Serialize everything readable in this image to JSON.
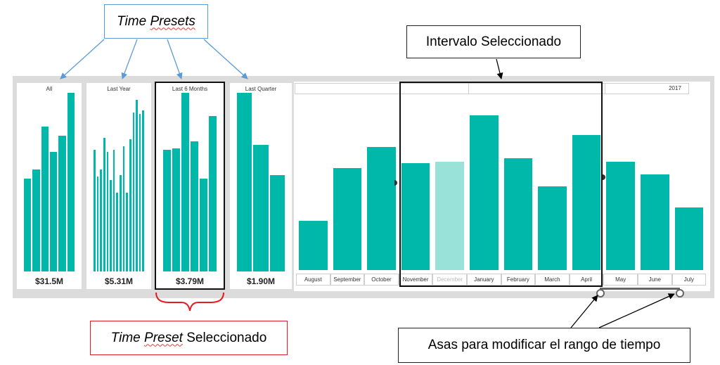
{
  "annotations": {
    "time_presets_word1": "Time",
    "time_presets_word2": "Presets",
    "selected_interval": "Intervalo Seleccionado",
    "selected_preset_word1": "Time",
    "selected_preset_word2": "Preset",
    "selected_preset_word3": "Seleccionado",
    "handles": "Asas para modificar el rango de tiempo"
  },
  "presets": [
    {
      "label": "All",
      "value": "$31.5M",
      "bars": [
        0.52,
        0.57,
        0.81,
        0.67,
        0.76,
        1.0
      ]
    },
    {
      "label": "Last Year",
      "value": "$5.31M",
      "bars": [
        0.68,
        0.53,
        0.57,
        0.75,
        0.67,
        0.51,
        0.68,
        0.44,
        0.54,
        0.7,
        0.44,
        0.74,
        0.89,
        0.96,
        0.88,
        0.9
      ]
    },
    {
      "label": "Last 6 Months",
      "value": "$3.79M",
      "bars": [
        0.68,
        0.69,
        1.0,
        0.73,
        0.52,
        0.87
      ]
    },
    {
      "label": "Last Quarter",
      "value": "$1.90M",
      "bars": [
        1.0,
        0.71,
        0.54
      ]
    }
  ],
  "timeline": {
    "year": "2017",
    "months": [
      {
        "label": "August",
        "value": 0.3,
        "dim": false
      },
      {
        "label": "September",
        "value": 0.62,
        "dim": false
      },
      {
        "label": "October",
        "value": 0.75,
        "dim": false
      },
      {
        "label": "November",
        "value": 0.65,
        "dim": false
      },
      {
        "label": "December",
        "value": 0.66,
        "dim": true
      },
      {
        "label": "January",
        "value": 0.94,
        "dim": false
      },
      {
        "label": "February",
        "value": 0.68,
        "dim": false
      },
      {
        "label": "March",
        "value": 0.51,
        "dim": false
      },
      {
        "label": "April",
        "value": 0.82,
        "dim": false
      },
      {
        "label": "May",
        "value": 0.66,
        "dim": false
      },
      {
        "label": "June",
        "value": 0.58,
        "dim": false
      },
      {
        "label": "July",
        "value": 0.38,
        "dim": false
      }
    ]
  },
  "colors": {
    "bar": "#00b8a9",
    "bar_dim": "#98e2d9",
    "arrow_blue": "#5b9bd5",
    "box_red": "#e31b23"
  }
}
